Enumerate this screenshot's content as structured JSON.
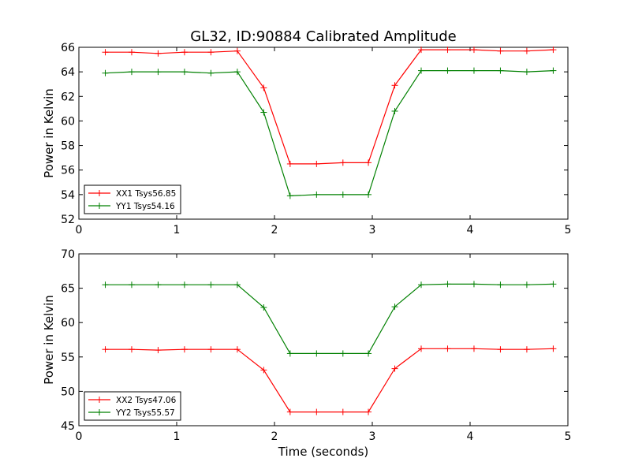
{
  "title": "GL32, ID:90884 Calibrated Amplitude",
  "colors": {
    "red": "#ff0000",
    "green": "#008000"
  },
  "chart_data": [
    {
      "type": "line",
      "xlabel": "",
      "ylabel": "Power in Kelvin",
      "xlim": [
        0,
        5
      ],
      "ylim": [
        52,
        66
      ],
      "xticks": [
        "0",
        "1",
        "2",
        "3",
        "4",
        "5"
      ],
      "yticks": [
        "52",
        "54",
        "56",
        "58",
        "60",
        "62",
        "64",
        "66"
      ],
      "legend": "lower-left",
      "x": [
        0.27,
        0.54,
        0.81,
        1.08,
        1.35,
        1.62,
        1.89,
        2.16,
        2.43,
        2.7,
        2.96,
        3.23,
        3.5,
        3.77,
        4.04,
        4.31,
        4.58,
        4.85
      ],
      "series": [
        {
          "name": "XX1 Tsys56.85",
          "color": "#ff0000",
          "values": [
            65.6,
            65.6,
            65.5,
            65.6,
            65.6,
            65.7,
            62.7,
            56.5,
            56.5,
            56.6,
            56.6,
            62.9,
            65.8,
            65.8,
            65.8,
            65.7,
            65.7,
            65.8
          ]
        },
        {
          "name": "YY1 Tsys54.16",
          "color": "#008000",
          "values": [
            63.9,
            64.0,
            64.0,
            64.0,
            63.9,
            64.0,
            60.7,
            53.9,
            54.0,
            54.0,
            54.0,
            60.8,
            64.1,
            64.1,
            64.1,
            64.1,
            64.0,
            64.1
          ]
        }
      ]
    },
    {
      "type": "line",
      "xlabel": "Time (seconds)",
      "ylabel": "Power in Kelvin",
      "xlim": [
        0,
        5
      ],
      "ylim": [
        45,
        70
      ],
      "xticks": [
        "0",
        "1",
        "2",
        "3",
        "4",
        "5"
      ],
      "yticks": [
        "45",
        "50",
        "55",
        "60",
        "65",
        "70"
      ],
      "legend": "lower-left",
      "x": [
        0.27,
        0.54,
        0.81,
        1.08,
        1.35,
        1.62,
        1.89,
        2.16,
        2.43,
        2.7,
        2.96,
        3.23,
        3.5,
        3.77,
        4.04,
        4.31,
        4.58,
        4.85
      ],
      "series": [
        {
          "name": "XX2 Tsys47.06",
          "color": "#ff0000",
          "values": [
            56.1,
            56.1,
            56.0,
            56.1,
            56.1,
            56.1,
            53.1,
            47.0,
            47.0,
            47.0,
            47.0,
            53.3,
            56.2,
            56.2,
            56.2,
            56.1,
            56.1,
            56.2
          ]
        },
        {
          "name": "YY2 Tsys55.57",
          "color": "#008000",
          "values": [
            65.5,
            65.5,
            65.5,
            65.5,
            65.5,
            65.5,
            62.2,
            55.5,
            55.5,
            55.5,
            55.5,
            62.3,
            65.5,
            65.6,
            65.6,
            65.5,
            65.5,
            65.6
          ]
        }
      ]
    }
  ]
}
